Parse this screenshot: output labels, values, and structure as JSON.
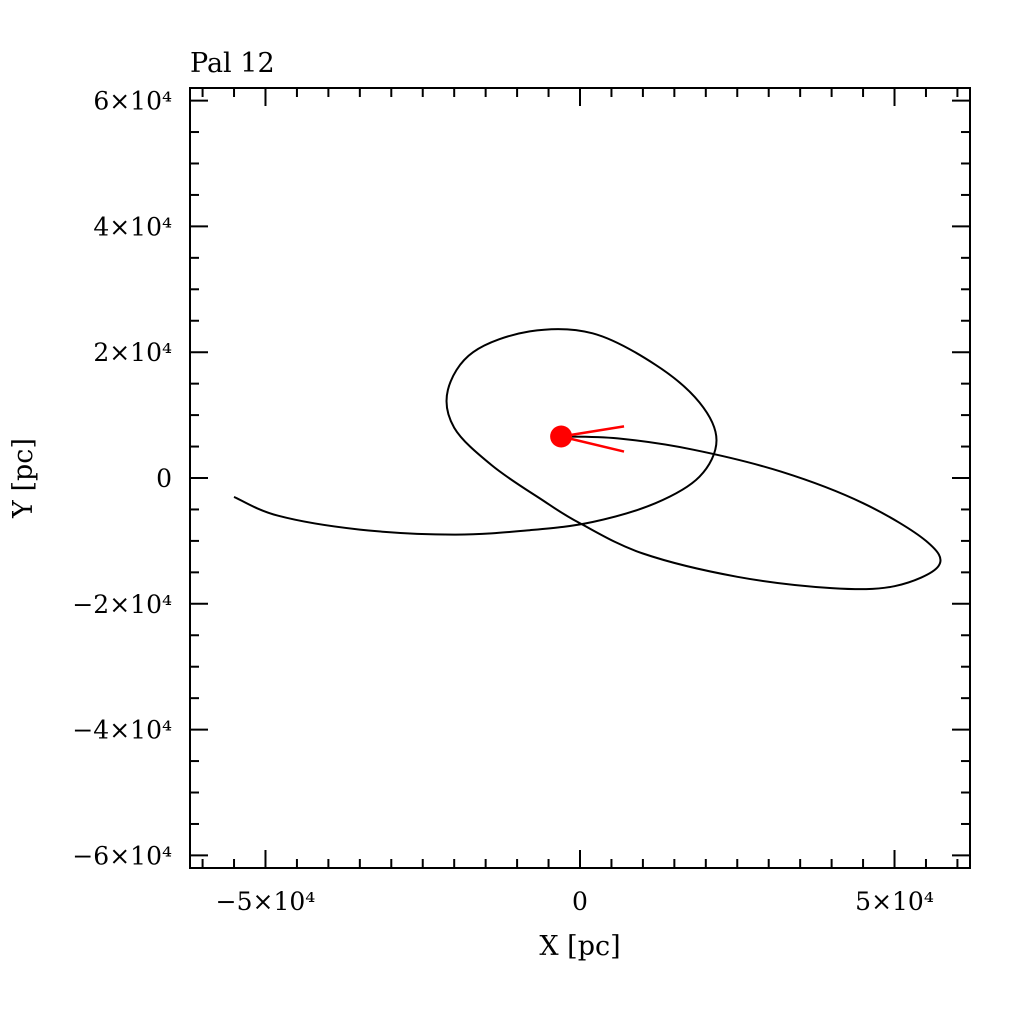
{
  "chart_data": {
    "type": "line",
    "title": "Pal 12",
    "xlabel": "X [pc]",
    "ylabel": "Y [pc]",
    "xlim": [
      -62000,
      62000
    ],
    "ylim": [
      -62000,
      62000
    ],
    "x_ticks": [
      {
        "value": -50000,
        "label": "−5×10⁴"
      },
      {
        "value": 0,
        "label": "0"
      },
      {
        "value": 50000,
        "label": "5×10⁴"
      }
    ],
    "y_ticks": [
      {
        "value": 60000,
        "label": "6×10⁴"
      },
      {
        "value": 40000,
        "label": "4×10⁴"
      },
      {
        "value": 20000,
        "label": "2×10⁴"
      },
      {
        "value": 0,
        "label": "0"
      },
      {
        "value": -20000,
        "label": "−2×10⁴"
      },
      {
        "value": -40000,
        "label": "−4×10⁴"
      },
      {
        "value": -60000,
        "label": "−6×10⁴"
      }
    ],
    "minor_tick_step": 5000,
    "grid": false,
    "series": [
      {
        "color": "#000000",
        "points": [
          [
            -55000,
            -3000
          ],
          [
            -48000,
            -6000
          ],
          [
            -35000,
            -8200
          ],
          [
            -20000,
            -9000
          ],
          [
            -8000,
            -8300
          ],
          [
            2000,
            -7000
          ],
          [
            12000,
            -4000
          ],
          [
            19000,
            200
          ],
          [
            21700,
            6000
          ],
          [
            19000,
            12000
          ],
          [
            12000,
            18000
          ],
          [
            2000,
            23000
          ],
          [
            -8000,
            23300
          ],
          [
            -17000,
            20000
          ],
          [
            -21000,
            14000
          ],
          [
            -20000,
            8000
          ],
          [
            -14000,
            2000
          ],
          [
            -6000,
            -3500
          ],
          [
            0,
            -7200
          ],
          [
            10000,
            -12000
          ],
          [
            25000,
            -15700
          ],
          [
            40000,
            -17500
          ],
          [
            50000,
            -17200
          ],
          [
            57000,
            -14000
          ],
          [
            55000,
            -10000
          ],
          [
            45000,
            -4000
          ],
          [
            32000,
            1000
          ],
          [
            18000,
            4500
          ],
          [
            6000,
            6300
          ],
          [
            -3000,
            6600
          ]
        ]
      }
    ],
    "marker": {
      "x": -3000,
      "y": 6600,
      "color": "#ff0000"
    },
    "velocity_arrow": {
      "tip": [
        -3000,
        6600
      ],
      "tails": [
        [
          7000,
          8200
        ],
        [
          7000,
          4200
        ]
      ],
      "color": "#ff0000"
    }
  }
}
